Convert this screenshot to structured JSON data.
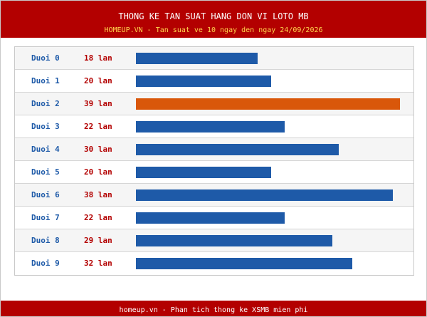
{
  "header": {
    "title": "THONG KE TAN SUAT HANG DON VI LOTO MB",
    "subtitle": "HOMEUP.VN - Tan suat ve 10 ngay den ngay 24/09/2026"
  },
  "colors": {
    "header_bg": "#b30000",
    "subtitle": "#ffd34d",
    "bar_normal": "#1e5aa8",
    "bar_highlight": "#d9570a",
    "label": "#1e5aa8",
    "count": "#b30000"
  },
  "scale_max": 39,
  "rows": [
    {
      "label": "Duoi 0",
      "count_text": "18 lan",
      "value": 18
    },
    {
      "label": "Duoi 1",
      "count_text": "20 lan",
      "value": 20
    },
    {
      "label": "Duoi 2",
      "count_text": "39 lan",
      "value": 39,
      "highlight": true
    },
    {
      "label": "Duoi 3",
      "count_text": "22 lan",
      "value": 22
    },
    {
      "label": "Duoi 4",
      "count_text": "30 lan",
      "value": 30
    },
    {
      "label": "Duoi 5",
      "count_text": "20 lan",
      "value": 20
    },
    {
      "label": "Duoi 6",
      "count_text": "38 lan",
      "value": 38
    },
    {
      "label": "Duoi 7",
      "count_text": "22 lan",
      "value": 22
    },
    {
      "label": "Duoi 8",
      "count_text": "29 lan",
      "value": 29
    },
    {
      "label": "Duoi 9",
      "count_text": "32 lan",
      "value": 32
    }
  ],
  "footer": {
    "text": "homeup.vn - Phan tich thong ke XSMB mien phi"
  }
}
